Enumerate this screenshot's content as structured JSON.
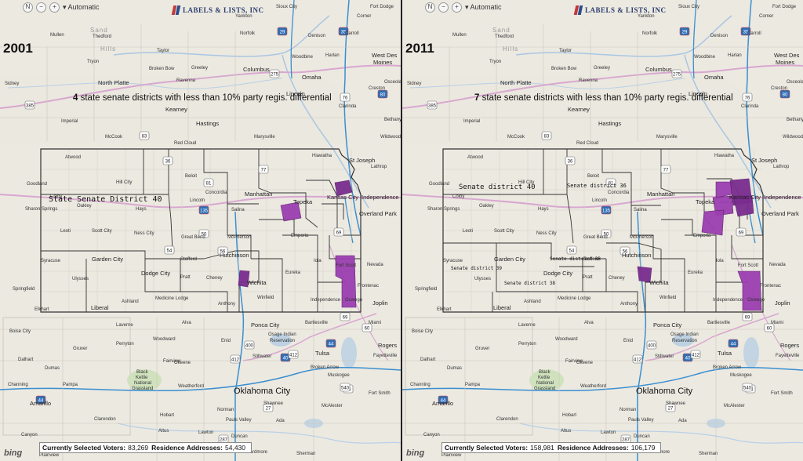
{
  "toolbar": {
    "compass": "N",
    "zoom_out": "−",
    "zoom_in": "+",
    "mode_label": "▾ Automatic"
  },
  "logo": {
    "text": "LABELS & LISTS, INC"
  },
  "provider": {
    "name": "bing"
  },
  "colors": {
    "highlight": "#9b3fb0",
    "highlight_dark": "#7a2d8f",
    "boundary": "#333333",
    "interstate": "#3a8fd0",
    "highway": "#d8a8d0",
    "water": "#a9c6e2",
    "grass": "#cfe2bd"
  },
  "panels": [
    {
      "id": "left",
      "year": "2001",
      "count": "4",
      "headline_rest": " state senate districts with less than 10% party regis. differential",
      "district_labels": [
        "State Senate District 40"
      ],
      "status": {
        "voters_label": "Currently Selected Voters:",
        "voters_value": "83,269",
        "addresses_label": "Residence Addresses:",
        "addresses_value": "54,430"
      }
    },
    {
      "id": "right",
      "year": "2011",
      "count": "7",
      "headline_rest": " state senate districts with less than 10% party regis. differential",
      "district_labels": [
        "Senate district 40",
        "Senate district 36",
        "Senate district 33",
        "Senate district 39",
        "Senate district 38"
      ],
      "status": {
        "voters_label": "Currently Selected Voters:",
        "voters_value": "158,981",
        "addresses_label": "Residence Addresses:",
        "addresses_value": "106,179"
      }
    }
  ],
  "cities": {
    "sioux_city": "Sioux City",
    "fort_dodge": "Fort Dodge",
    "yankton": "Yankton",
    "corner": "Corner",
    "sand": "Sand",
    "hills": "Hills",
    "mullen": "Mullen",
    "thedford": "Thedford",
    "taylor": "Taylor",
    "norfolk": "Norfolk",
    "denison": "Denison",
    "carroll": "Carroll",
    "tryon": "Tryon",
    "broken_bow": "Broken Bow",
    "greeley": "Greeley",
    "columbus": "Columbus",
    "wahoo_area": "Woodbine",
    "harlan": "Harlan",
    "west_des_moines": "West Des",
    "moines": "Moines",
    "sidney": "Sidney",
    "north_platte": "North Platte",
    "kearney": "Kearney",
    "omaha": "Omaha",
    "lincoln_ne": "Lincoln",
    "ravenna": "Ravenna",
    "creston": "Creston",
    "osceola": "Osceola",
    "hastings": "Hastings",
    "clarinda": "Clarinda",
    "imperial": "Imperial",
    "mccook": "McCook",
    "red_cloud": "Red Cloud",
    "marysville": "Marysville",
    "hiawatha": "Hiawatha",
    "st_joseph": "St Joseph",
    "wildwood": "Wildwood",
    "bethany": "Bethany",
    "lathrop": "Lathrop",
    "goodland": "Goodland",
    "atwood": "Atwood",
    "colby": "Colby",
    "hill_city": "Hill City",
    "hays": "Hays",
    "beloit": "Beloit",
    "concordia": "Concordia",
    "manhattan": "Manhattan",
    "topeka": "Topeka",
    "kansas_city": "Kansas City",
    "independence_mo": "Independence",
    "overland_park": "Overland Park",
    "sharon_springs": "Sharon Springs",
    "oakley": "Oakley",
    "salina": "Salina",
    "lincoln_ks": "Lincoln",
    "emporia": "Emporia",
    "leoti": "Leoti",
    "scott_city": "Scott City",
    "ness_city": "Ness City",
    "great_bend": "Great Bend",
    "mcpherson": "McPherson",
    "garden_city": "Garden City",
    "syracuse": "Syracuse",
    "dodge_city": "Dodge City",
    "hutchinson": "Hutchinson",
    "iola": "Iola",
    "fort_scott": "Fort Scott",
    "nevada": "Nevada",
    "ulysses": "Ulysses",
    "springfield": "Springfield",
    "pratt": "Pratt",
    "cheney": "Cheney",
    "wichita": "Wichita",
    "eureka": "Eureka",
    "winfield": "Winfield",
    "independence_ks": "Independence",
    "liberal": "Liberal",
    "medicine_lodge": "Medicine Lodge",
    "ashland": "Ashland",
    "anthony": "Anthony",
    "stafford": "Stafford",
    "frontenac": "Frontenac",
    "joplin": "Joplin",
    "oswego": "Oswego",
    "elkhart": "Elkhart",
    "boise_city": "Boise City",
    "laverne": "Laverne",
    "alva": "Alva",
    "ponca_city": "Ponca City",
    "bartlesville": "Bartlesville",
    "miami": "Miami",
    "gruver": "Gruver",
    "perryton": "Perryton",
    "woodward": "Woodward",
    "enid": "Enid",
    "osage": "Osage Indian",
    "reservation": "Reservation",
    "rogers": "Rogers",
    "fayetteville": "Fayetteville",
    "dalhart": "Dalhart",
    "dumas": "Dumas",
    "fairview": "Fairview",
    "okeene": "Okeene",
    "stillwater": "Stillwater",
    "tulsa": "Tulsa",
    "broken_arrow": "Broken Arrow",
    "muskogee": "Muskogee",
    "black_kettle": "Black",
    "kettle": "Kettle",
    "national": "National",
    "grassland": "Grassland",
    "channing": "Channing",
    "pampa": "Pampa",
    "weatherford": "Weatherford",
    "oklahoma_city": "Oklahoma City",
    "shawnee": "Shawnee",
    "fort_smith": "Fort Smith",
    "amarillo": "Amarillo",
    "clarendon": "Clarendon",
    "hobart": "Hobart",
    "norman": "Norman",
    "ada": "Ada",
    "mcalester": "McAlester",
    "altus": "Altus",
    "lawton": "Lawton",
    "pauls_valley": "Pauls Valley",
    "canyon": "Canyon",
    "duncan": "Duncan",
    "plainview": "Plainview",
    "ardmore": "Ardmore",
    "wichita_falls": "Wichita Falls",
    "sherman": "Sherman",
    "vernon": "Vernon",
    "henrietta": "Henrietta"
  },
  "shields": [
    "385",
    "29",
    "35",
    "275",
    "80",
    "76",
    "83",
    "36",
    "77",
    "81",
    "69",
    "135",
    "54",
    "56",
    "50",
    "400",
    "44",
    "69",
    "60",
    "64",
    "412",
    "40",
    "412",
    "540",
    "44",
    "27",
    "287"
  ]
}
